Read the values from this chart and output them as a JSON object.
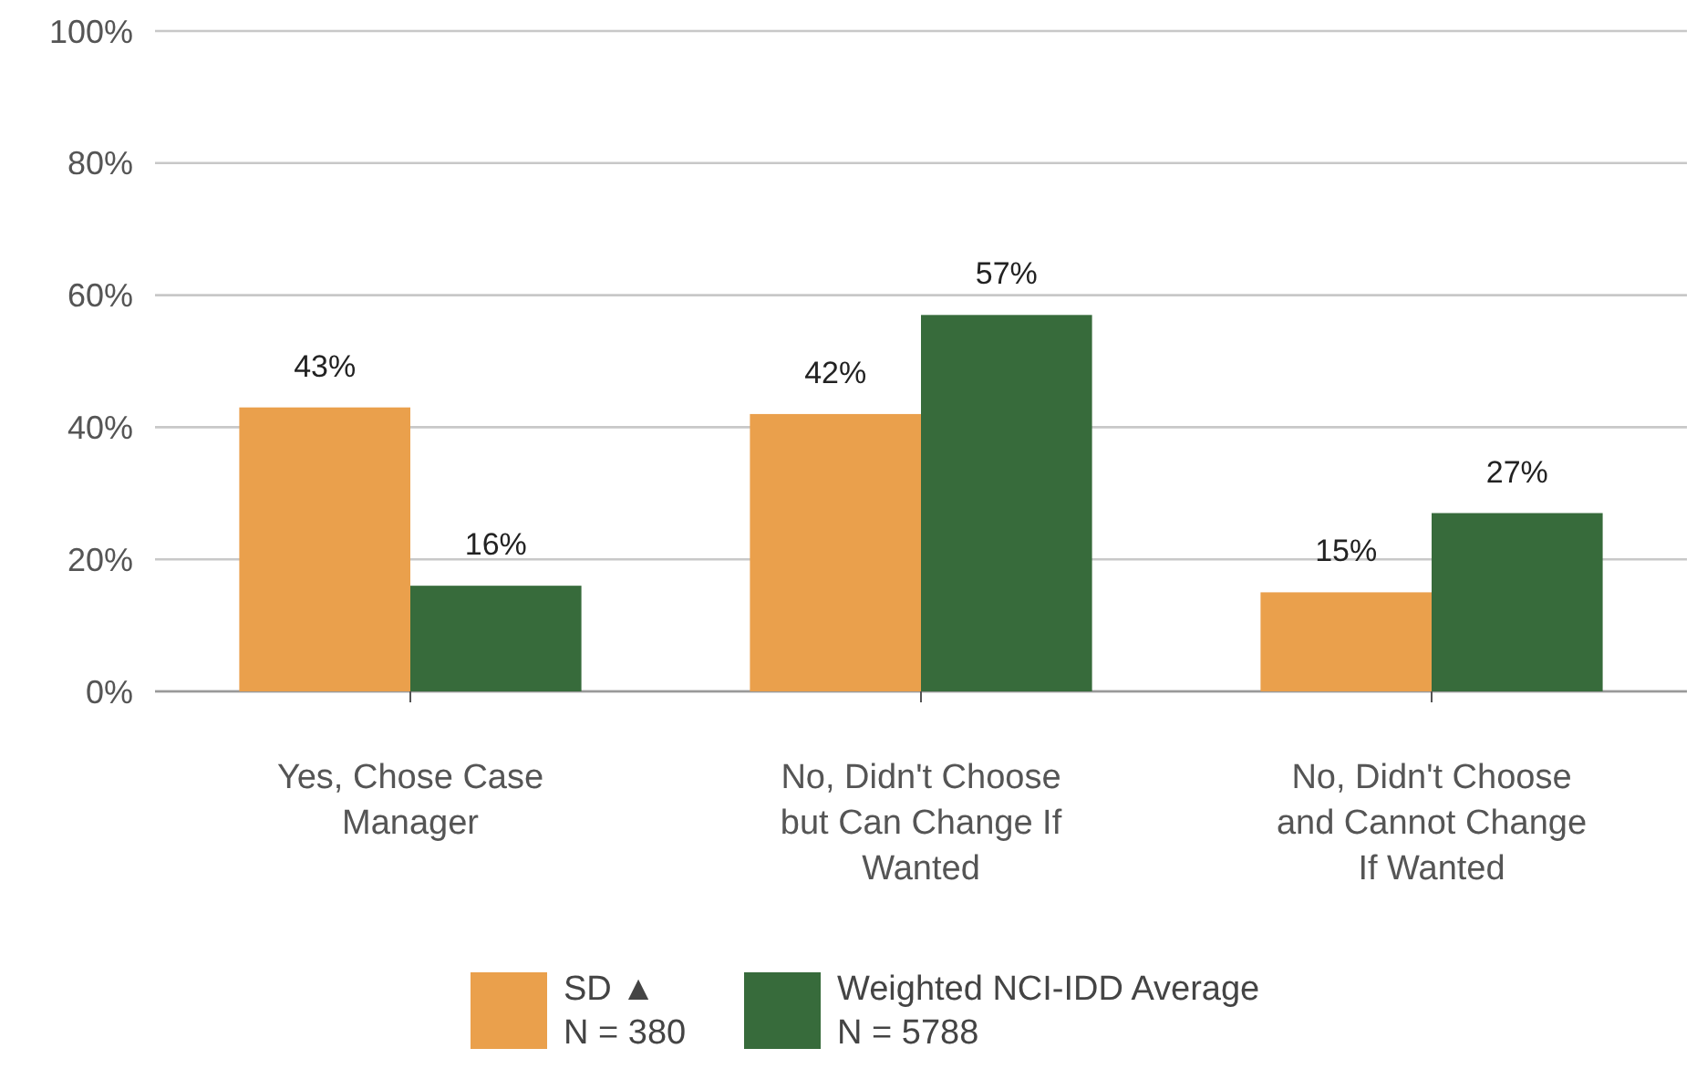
{
  "chart_data": {
    "type": "bar",
    "categories": [
      "Yes, Chose Case Manager",
      "No, Didn't Choose but Can Change If Wanted",
      "No, Didn't Choose and Cannot Change If Wanted"
    ],
    "series": [
      {
        "name": "SD ▲\nN = 380",
        "color": "#eaa04c",
        "values": [
          43,
          42,
          15
        ],
        "value_labels": [
          "43%",
          "42%",
          "15%"
        ]
      },
      {
        "name": "Weighted NCI-IDD Average\nN = 5788",
        "color": "#376b3b",
        "values": [
          16,
          57,
          27
        ],
        "value_labels": [
          "16%",
          "57%",
          "27%"
        ]
      }
    ],
    "ylim": [
      0,
      100
    ],
    "yticks": [
      {
        "value": 0,
        "label": "0%"
      },
      {
        "value": 20,
        "label": "20%"
      },
      {
        "value": 40,
        "label": "40%"
      },
      {
        "value": 60,
        "label": "60%"
      },
      {
        "value": 80,
        "label": "80%"
      },
      {
        "value": 100,
        "label": "100%"
      }
    ],
    "grid": "y",
    "legend": "bottom"
  }
}
